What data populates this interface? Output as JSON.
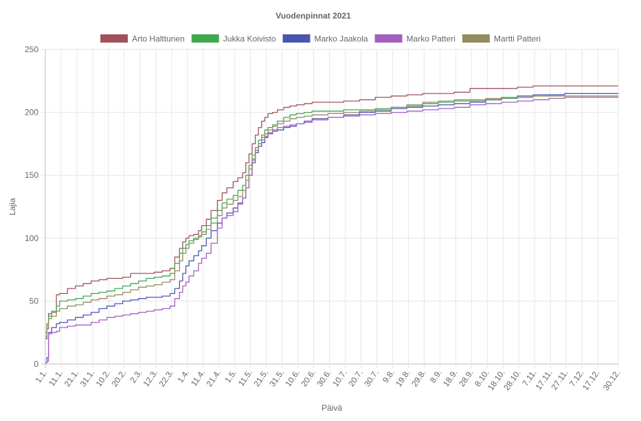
{
  "chart_data": {
    "type": "line",
    "title": "Vuodenpinnat 2021",
    "xlabel": "Päivä",
    "ylabel": "Lajia",
    "ylim": [
      0,
      250
    ],
    "y_ticks": [
      0,
      50,
      100,
      150,
      200,
      250
    ],
    "x_ticks": [
      "1.1.",
      "11.1.",
      "21.1.",
      "31.1.",
      "10.2.",
      "20.2.",
      "2.3.",
      "12.3.",
      "22.3.",
      "1.4.",
      "11.4.",
      "21.4.",
      "1.5.",
      "11.5.",
      "21.5.",
      "31.5.",
      "10.6.",
      "20.6.",
      "30.6.",
      "10.7.",
      "20.7.",
      "30.7.",
      "9.8.",
      "19.8.",
      "29.8.",
      "8.9.",
      "18.9.",
      "28.9.",
      "8.10.",
      "18.10.",
      "28.10.",
      "7.11.",
      "17.11.",
      "27.11.",
      "7.12.",
      "17.12.",
      "30.12."
    ],
    "x_day_range": [
      1,
      364
    ],
    "grid": true,
    "legend_position": "top",
    "series": [
      {
        "name": "Arto Halttunen",
        "color": "#a0525c",
        "x": [
          1,
          2,
          3,
          5,
          8,
          10,
          15,
          20,
          25,
          30,
          35,
          40,
          45,
          50,
          55,
          60,
          65,
          70,
          75,
          80,
          83,
          86,
          88,
          90,
          92,
          95,
          98,
          100,
          103,
          106,
          110,
          113,
          116,
          120,
          123,
          126,
          128,
          130,
          132,
          134,
          136,
          138,
          140,
          142,
          145,
          148,
          152,
          156,
          160,
          165,
          170,
          180,
          190,
          200,
          210,
          220,
          230,
          240,
          250,
          260,
          270,
          280,
          290,
          300,
          310,
          320,
          330,
          340,
          350,
          364
        ],
        "y": [
          20,
          28,
          40,
          41,
          55,
          56,
          60,
          62,
          64,
          66,
          67,
          68,
          68,
          69,
          72,
          72,
          72,
          73,
          74,
          76,
          85,
          92,
          97,
          100,
          102,
          103,
          106,
          110,
          115,
          122,
          130,
          136,
          140,
          145,
          148,
          152,
          160,
          167,
          175,
          182,
          188,
          193,
          196,
          199,
          200,
          202,
          204,
          205,
          206,
          207,
          208,
          208,
          209,
          210,
          212,
          213,
          214,
          215,
          215,
          216,
          219,
          219,
          219,
          220,
          221,
          221,
          221,
          221,
          221,
          221
        ]
      },
      {
        "name": "Jukka Koivisto",
        "color": "#3fa84f",
        "x": [
          1,
          2,
          3,
          5,
          8,
          10,
          15,
          20,
          25,
          30,
          35,
          40,
          45,
          50,
          55,
          60,
          65,
          70,
          75,
          80,
          83,
          86,
          88,
          90,
          92,
          95,
          98,
          100,
          103,
          106,
          110,
          113,
          116,
          120,
          123,
          126,
          128,
          130,
          132,
          134,
          136,
          138,
          140,
          142,
          145,
          148,
          152,
          156,
          160,
          165,
          170,
          180,
          190,
          200,
          210,
          220,
          230,
          240,
          250,
          260,
          270,
          280,
          290,
          300,
          310,
          320,
          330,
          340,
          350,
          364
        ],
        "y": [
          25,
          32,
          38,
          42,
          46,
          50,
          51,
          52,
          54,
          56,
          57,
          58,
          60,
          62,
          64,
          66,
          68,
          69,
          70,
          72,
          80,
          88,
          92,
          95,
          98,
          100,
          102,
          105,
          110,
          116,
          122,
          128,
          131,
          134,
          138,
          142,
          150,
          158,
          166,
          172,
          178,
          182,
          186,
          188,
          190,
          193,
          196,
          198,
          199,
          200,
          201,
          201,
          202,
          202,
          203,
          204,
          205,
          207,
          208,
          209,
          209,
          210,
          211,
          212,
          213,
          214,
          215,
          215,
          215,
          215
        ]
      },
      {
        "name": "Marko Jaakola",
        "color": "#4a55b0",
        "x": [
          1,
          2,
          3,
          5,
          8,
          10,
          15,
          20,
          25,
          30,
          35,
          40,
          45,
          50,
          55,
          60,
          65,
          70,
          75,
          80,
          83,
          86,
          88,
          90,
          92,
          95,
          98,
          100,
          103,
          106,
          110,
          113,
          116,
          120,
          123,
          126,
          128,
          130,
          132,
          134,
          136,
          138,
          140,
          142,
          145,
          148,
          152,
          156,
          160,
          165,
          170,
          180,
          190,
          200,
          210,
          220,
          230,
          240,
          250,
          260,
          270,
          280,
          290,
          300,
          310,
          320,
          330,
          340,
          350,
          364
        ],
        "y": [
          1,
          5,
          25,
          29,
          32,
          33,
          35,
          37,
          39,
          41,
          44,
          46,
          48,
          50,
          51,
          52,
          53,
          53,
          54,
          56,
          60,
          66,
          72,
          78,
          82,
          86,
          90,
          94,
          100,
          106,
          112,
          116,
          120,
          124,
          128,
          132,
          140,
          150,
          160,
          168,
          173,
          176,
          180,
          183,
          185,
          186,
          188,
          189,
          191,
          193,
          195,
          196,
          198,
          200,
          201,
          203,
          204,
          205,
          206,
          207,
          208,
          210,
          212,
          213,
          214,
          214,
          215,
          215,
          215,
          215
        ]
      },
      {
        "name": "Marko Patteri",
        "color": "#a35fc0",
        "x": [
          1,
          2,
          3,
          5,
          8,
          10,
          15,
          20,
          25,
          30,
          35,
          40,
          45,
          50,
          55,
          60,
          65,
          70,
          75,
          80,
          83,
          86,
          88,
          90,
          92,
          95,
          98,
          100,
          103,
          106,
          110,
          113,
          116,
          120,
          123,
          126,
          128,
          130,
          132,
          134,
          136,
          138,
          140,
          142,
          145,
          148,
          152,
          156,
          160,
          165,
          170,
          180,
          190,
          200,
          210,
          220,
          230,
          240,
          250,
          260,
          270,
          280,
          290,
          300,
          310,
          320,
          330,
          340,
          350,
          364
        ],
        "y": [
          1,
          2,
          24,
          25,
          26,
          29,
          30,
          31,
          31,
          33,
          35,
          37,
          38,
          39,
          40,
          41,
          42,
          43,
          44,
          46,
          52,
          57,
          62,
          65,
          70,
          74,
          80,
          84,
          88,
          96,
          108,
          116,
          118,
          121,
          127,
          132,
          140,
          150,
          162,
          170,
          175,
          178,
          181,
          184,
          186,
          188,
          189,
          190,
          191,
          192,
          194,
          196,
          197,
          198,
          199,
          200,
          201,
          202,
          203,
          204,
          206,
          207,
          208,
          209,
          210,
          211,
          212,
          212,
          212,
          212
        ]
      },
      {
        "name": "Martti Patteri",
        "color": "#928c60",
        "x": [
          1,
          2,
          3,
          5,
          8,
          10,
          15,
          20,
          25,
          30,
          35,
          40,
          45,
          50,
          55,
          60,
          65,
          70,
          75,
          80,
          83,
          86,
          88,
          90,
          92,
          95,
          98,
          100,
          103,
          106,
          110,
          113,
          116,
          120,
          123,
          126,
          128,
          130,
          132,
          134,
          136,
          138,
          140,
          142,
          145,
          148,
          152,
          156,
          160,
          165,
          170,
          180,
          190,
          200,
          210,
          220,
          230,
          240,
          250,
          260,
          270,
          280,
          290,
          300,
          310,
          320,
          330,
          340,
          350,
          364
        ],
        "y": [
          22,
          30,
          36,
          38,
          42,
          44,
          46,
          47,
          49,
          51,
          52,
          54,
          55,
          57,
          59,
          61,
          62,
          63,
          65,
          67,
          74,
          82,
          88,
          92,
          96,
          99,
          101,
          103,
          107,
          112,
          118,
          124,
          127,
          130,
          133,
          138,
          146,
          155,
          163,
          170,
          175,
          180,
          183,
          186,
          189,
          191,
          193,
          195,
          196,
          197,
          198,
          199,
          200,
          201,
          202,
          204,
          206,
          208,
          209,
          210,
          210,
          211,
          212,
          212,
          213,
          213,
          213,
          213,
          213,
          213
        ]
      }
    ]
  }
}
